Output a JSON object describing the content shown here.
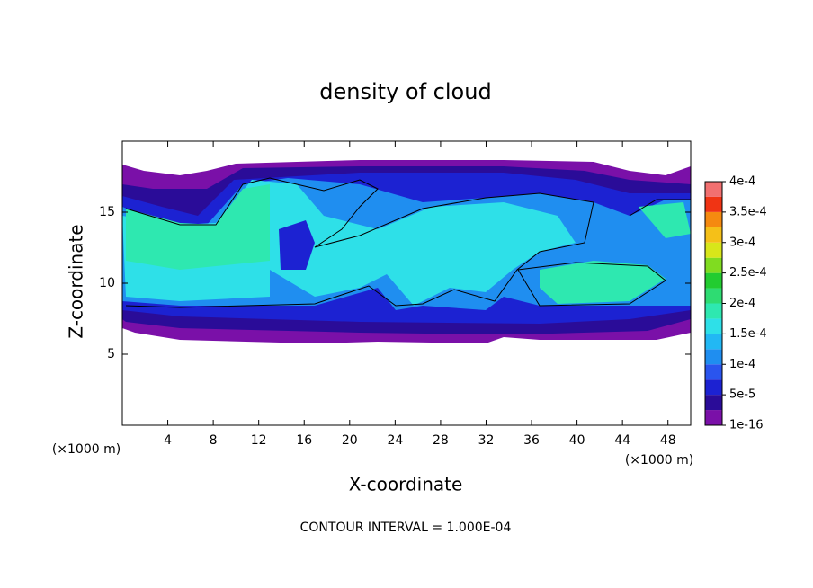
{
  "chart_data": {
    "type": "contour",
    "title": "density of cloud",
    "x_label": "X-coordinate",
    "y_label": "Z-coordinate",
    "x_unit": "(×1000 m)",
    "y_unit": "(×1000 m)",
    "footnote": "CONTOUR INTERVAL = 1.000E-04",
    "xlim": [
      0,
      50
    ],
    "xticks": [
      4,
      8,
      12,
      16,
      20,
      24,
      28,
      32,
      36,
      40,
      44,
      48
    ],
    "ylim": [
      0,
      20
    ],
    "yticks": [
      5,
      10,
      15
    ],
    "colorbar": {
      "levels": [
        {
          "value": 1e-16,
          "label": "1e-16"
        },
        {
          "value": 5e-05,
          "label": "5e-5"
        },
        {
          "value": 0.0001,
          "label": "1e-4"
        },
        {
          "value": 0.00015,
          "label": "1.5e-4"
        },
        {
          "value": 0.0002,
          "label": "2e-4"
        },
        {
          "value": 0.00025,
          "label": "2.5e-4"
        },
        {
          "value": 0.0003,
          "label": "3e-4"
        },
        {
          "value": 0.00035,
          "label": "3.5e-4"
        },
        {
          "value": 0.0004,
          "label": "4e-4"
        }
      ],
      "colors": [
        "#7a10a8",
        "#2a0c98",
        "#1c22d2",
        "#2a55ee",
        "#1f8ef0",
        "#22b8f4",
        "#2ee0e8",
        "#2ee8b0",
        "#2edc72",
        "#22cc30",
        "#80dc20",
        "#d8e61a",
        "#f5c018",
        "#f58a10",
        "#f03414",
        "#f27070"
      ]
    }
  }
}
